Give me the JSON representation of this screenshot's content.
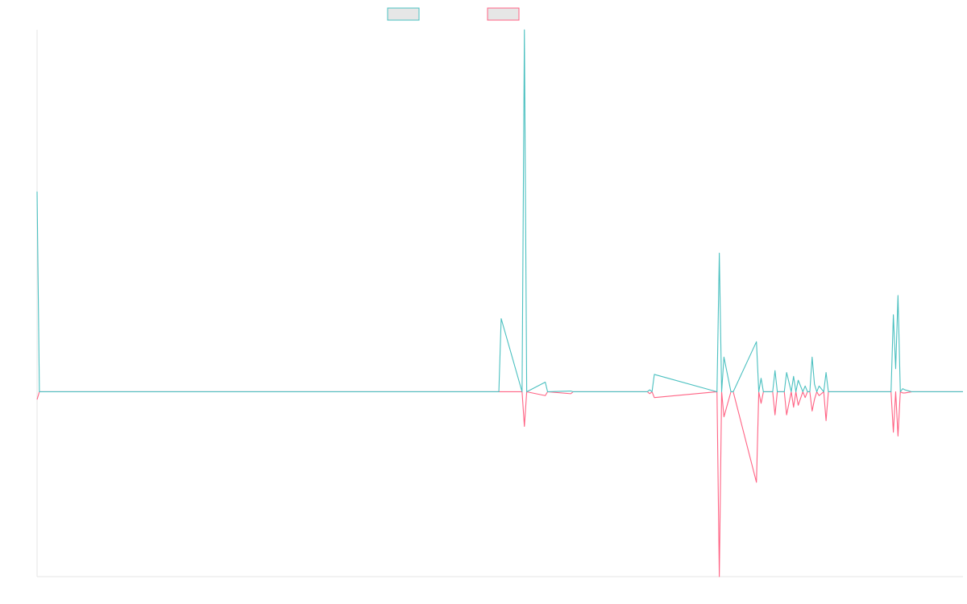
{
  "chart_data": {
    "type": "line",
    "title": "",
    "xlabel": "",
    "ylabel": "",
    "grid": false,
    "legend_position": "top-center",
    "ylim": [
      -48,
      94
    ],
    "x": [
      0,
      1,
      199,
      200,
      209,
      210,
      211,
      219,
      220,
      230,
      231,
      263,
      264,
      265,
      266,
      293,
      294,
      295,
      296,
      299,
      300,
      310,
      311,
      312,
      313,
      314,
      317,
      318,
      319,
      322,
      323,
      325,
      326,
      327,
      328,
      330,
      331,
      332,
      333,
      334,
      335,
      336,
      337,
      339,
      340,
      341,
      346,
      351,
      357,
      362,
      368,
      369,
      370,
      371,
      372,
      373,
      374,
      377,
      378,
      399
    ],
    "series": [
      {
        "name": "",
        "color": "#4bc0c0",
        "fill": "#e6e6e6",
        "values": [
          52,
          0,
          0,
          19,
          0,
          94,
          0,
          2.5,
          0,
          0.2,
          0,
          0,
          0.5,
          0,
          4.5,
          0,
          36,
          0,
          9,
          0,
          0,
          13,
          0,
          3.5,
          0,
          0,
          0,
          5.5,
          0,
          0,
          5,
          0,
          4,
          0,
          3,
          0,
          1.5,
          0,
          0,
          9,
          2,
          0,
          1.5,
          0,
          5,
          0,
          0,
          0,
          0,
          0,
          0,
          20,
          6,
          25,
          0,
          0.8,
          0.5,
          0,
          0,
          0
        ]
      },
      {
        "name": "",
        "color": "#ff6384",
        "fill": "#e6e6e6",
        "values": [
          -2,
          0,
          0,
          0,
          0,
          -9,
          0,
          -1,
          0,
          -0.5,
          0,
          0,
          -0.5,
          0,
          -1.5,
          0,
          -48,
          0,
          -6.5,
          0,
          0,
          -23.5,
          0,
          -3,
          0,
          0,
          0,
          -6,
          0,
          0,
          -6,
          0,
          -4,
          0,
          -3.5,
          0,
          -1.5,
          0,
          0,
          -5,
          -2,
          0,
          -1,
          0,
          -7.5,
          0,
          0,
          0,
          0,
          0,
          0,
          -10.5,
          0,
          -11.5,
          0,
          -0.3,
          -0.3,
          0,
          0,
          0
        ]
      }
    ]
  }
}
